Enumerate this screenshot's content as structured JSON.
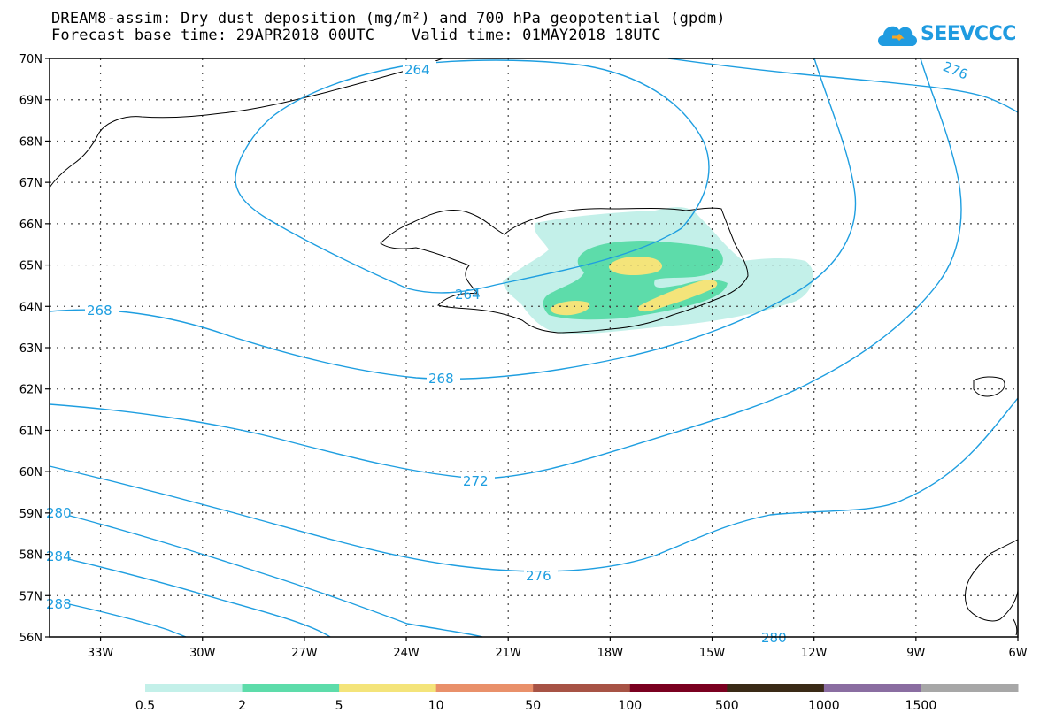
{
  "header": {
    "title_line1": "DREAM8-assim: Dry dust deposition (mg/m²) and 700 hPa geopotential (gpdm)",
    "title_line2": "Forecast base time: 29APR2018 00UTC    Valid time: 01MAY2018 18UTC",
    "logo_text": "SEEVCCC"
  },
  "map": {
    "lat_labels": [
      "70N",
      "69N",
      "68N",
      "67N",
      "66N",
      "65N",
      "64N",
      "63N",
      "62N",
      "61N",
      "60N",
      "59N",
      "58N",
      "57N",
      "56N"
    ],
    "lon_labels": [
      "33W",
      "30W",
      "27W",
      "24W",
      "21W",
      "18W",
      "15W",
      "12W",
      "9W",
      "6W"
    ],
    "contour_labels": [
      {
        "id": "c264a",
        "text": "264"
      },
      {
        "id": "c264b",
        "text": "264"
      },
      {
        "id": "c276a",
        "text": "276"
      },
      {
        "id": "c268a",
        "text": "268"
      },
      {
        "id": "c268b",
        "text": "268"
      },
      {
        "id": "c272a",
        "text": "272"
      },
      {
        "id": "c276b",
        "text": "276"
      },
      {
        "id": "c280a",
        "text": "280"
      },
      {
        "id": "c284a",
        "text": "284"
      },
      {
        "id": "c288a",
        "text": "288"
      },
      {
        "id": "c280b",
        "text": "280"
      }
    ],
    "contour_color": "#1e9ee0"
  },
  "legend": {
    "labels": [
      "0.5",
      "2",
      "5",
      "10",
      "50",
      "100",
      "500",
      "1000",
      "1500"
    ],
    "colors": [
      "#c3f0e9",
      "#5ddcaa",
      "#f4e47a",
      "#e9906a",
      "#a75345",
      "#7a0020",
      "#3a2a16",
      "#8a6da1",
      "#a7a7a7"
    ]
  }
}
